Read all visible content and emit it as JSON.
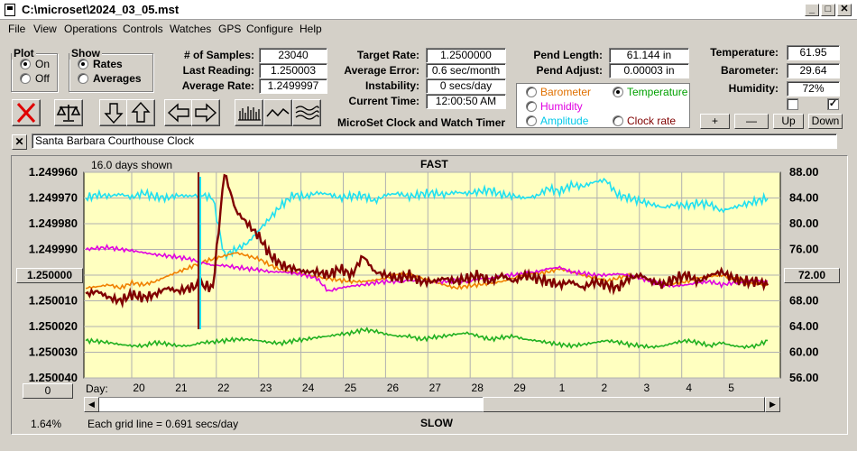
{
  "window": {
    "title": "C:\\microset\\2024_03_05.mst"
  },
  "menu": [
    "File",
    "View",
    "Operations",
    "Controls",
    "Watches",
    "GPS",
    "Configure",
    "Help"
  ],
  "plot": {
    "title": "Plot",
    "on": "On",
    "off": "Off",
    "selected": "On"
  },
  "show": {
    "title": "Show",
    "rates": "Rates",
    "averages": "Averages",
    "selected": "Rates"
  },
  "stats": {
    "samples_label": "# of Samples:",
    "samples": "23040",
    "last_reading_label": "Last Reading:",
    "last_reading": "1.250003",
    "average_rate_label": "Average Rate:",
    "average_rate": "1.2499997",
    "target_rate_label": "Target Rate:",
    "target_rate": "1.2500000",
    "average_error_label": "Average Error:",
    "average_error": "0.6 sec/month",
    "instability_label": "Instability:",
    "instability": "0 secs/day",
    "current_time_label": "Current Time:",
    "current_time": "12:00:50 AM",
    "pend_length_label": "Pend Length:",
    "pend_length": "61.144 in",
    "pend_adjust_label": "Pend Adjust:",
    "pend_adjust": "0.00003 in",
    "temperature_label": "Temperature:",
    "temperature": "61.95",
    "barometer_label": "Barometer:",
    "barometer": "29.64",
    "humidity_label": "Humidity:",
    "humidity": "72%"
  },
  "app_label": "MicroSet Clock and Watch Timer",
  "sensor_options": [
    {
      "label": "Barometer",
      "color": "#e07000",
      "selected": false
    },
    {
      "label": "Temperature",
      "color": "#00a000",
      "selected": true
    },
    {
      "label": "Humidity",
      "color": "#e000e0",
      "selected": false
    },
    {
      "label": "Amplitude",
      "color": "#00c8e8",
      "selected": false
    },
    {
      "label": "Clock rate",
      "color": "#800000",
      "selected": false
    }
  ],
  "scale_buttons": {
    "plus": "+",
    "minus": "—",
    "up": "Up",
    "down": "Down"
  },
  "checkboxes": {
    "left": "",
    "right": "✓"
  },
  "clock_name": "Santa Barbara Courthouse Clock",
  "close_x": "✕",
  "chart_header": {
    "days_shown": "16.0 days shown",
    "fast": "FAST",
    "slow": "SLOW",
    "grid_note": "Each grid line = 0.691 secs/day",
    "percent": "1.64%",
    "day_label": "Day:"
  },
  "chart_buttons": {
    "left_value": "1.250000",
    "right_value": "72.00",
    "bottom_left": "0"
  },
  "chart_data": {
    "type": "line",
    "left_axis": {
      "ticks": [
        "1.249960",
        "1.249970",
        "1.249980",
        "1.249990",
        "1.250000",
        "1.250010",
        "1.250020",
        "1.250030",
        "1.250040"
      ]
    },
    "right_axis": {
      "ticks": [
        "88.00",
        "84.00",
        "80.00",
        "76.00",
        "72.00",
        "68.00",
        "64.00",
        "60.00",
        "56.00"
      ],
      "ylim": [
        56,
        88
      ]
    },
    "x_ticks": [
      "20",
      "21",
      "22",
      "23",
      "24",
      "25",
      "26",
      "27",
      "28",
      "29",
      "1",
      "2",
      "3",
      "4",
      "5"
    ],
    "grid": true,
    "background": "#ffffc0",
    "series": [
      {
        "name": "Amplitude",
        "color": "#20e0f0",
        "values": [
          84.0,
          84.5,
          84.3,
          84.6,
          84.1,
          84.8,
          84.2,
          84.0,
          84.4,
          84.3,
          84.5,
          84.0,
          75,
          76,
          77,
          79,
          81,
          83,
          84.5,
          84.2,
          84.8,
          84.6,
          84.0,
          84.3,
          84.4,
          83.5,
          84.5,
          84.7,
          84.2,
          84.6,
          84.8,
          84.5,
          84.9,
          84.7,
          85.0,
          85.2,
          84.5,
          84.3,
          84.0,
          84.3,
          85.5,
          85.0,
          86.0,
          85.8,
          86.5,
          86.8,
          84.5,
          84.0,
          83.5,
          83.0,
          82.5,
          83.0,
          82.8,
          83.2,
          83.0,
          82.0,
          82.5,
          83.0,
          83.5,
          84.0
        ]
      },
      {
        "name": "Barometer",
        "color": "#f08000",
        "values": [
          70.0,
          70.2,
          70.5,
          70.0,
          70.8,
          70.5,
          71.0,
          71.8,
          72.5,
          73.2,
          74.0,
          74.5,
          75.0,
          75.5,
          75.0,
          74.5,
          73.5,
          72.8,
          72.5,
          72.0,
          71.8,
          71.5,
          71.2,
          71.0,
          71.0,
          71.2,
          71.6,
          72.0,
          72.0,
          71.5,
          71.0,
          70.5,
          70.0,
          70.3,
          70.5,
          70.8,
          71.0,
          71.5,
          72.0,
          72.2,
          72.5,
          73.0,
          72.5,
          72.0,
          71.5,
          71.0,
          71.5,
          72.0,
          71.5,
          71.0,
          70.5,
          70.8,
          71.0,
          71.5,
          71.8,
          72.0,
          71.5,
          71.0,
          70.8,
          70.5
        ]
      },
      {
        "name": "Humidity",
        "color": "#e000e0",
        "values": [
          76.0,
          76.2,
          76.3,
          76.0,
          75.8,
          75.5,
          75.2,
          75.0,
          74.8,
          74.5,
          74.0,
          73.5,
          73.5,
          73.2,
          73.0,
          72.8,
          72.5,
          72.5,
          72.3,
          72.0,
          71.5,
          69.5,
          70.0,
          70.3,
          70.5,
          70.8,
          71.0,
          71.0,
          71.2,
          71.0,
          71.0,
          71.0,
          71.2,
          71.0,
          71.5,
          71.5,
          72.0,
          72.0,
          72.2,
          72.5,
          73.0,
          73.2,
          72.5,
          72.3,
          72.0,
          72.0,
          72.2,
          72.0,
          71.5,
          71.0,
          70.5,
          70.3,
          70.5,
          70.8,
          71.0,
          70.5,
          70.8,
          71.0,
          71.2,
          71.0
        ]
      },
      {
        "name": "Temperature",
        "color": "#20b020",
        "values": [
          61.8,
          61.7,
          61.5,
          61.2,
          61.0,
          61.0,
          61.5,
          61.3,
          61.0,
          61.0,
          61.5,
          61.6,
          61.8,
          62.0,
          62.0,
          61.8,
          61.5,
          61.4,
          61.8,
          62.0,
          62.3,
          62.5,
          62.8,
          63.0,
          63.5,
          63.3,
          62.8,
          62.5,
          62.5,
          62.0,
          62.3,
          62.5,
          62.8,
          63.0,
          62.5,
          62.0,
          62.3,
          62.5,
          62.0,
          61.8,
          61.5,
          61.2,
          61.0,
          61.2,
          61.5,
          61.8,
          61.6,
          61.2,
          61.0,
          60.8,
          61.0,
          61.5,
          61.8,
          61.5,
          61.0,
          61.5,
          61.0,
          60.8,
          61.0,
          61.8
        ]
      },
      {
        "name": "Clock rate",
        "color": "#800000",
        "values": [
          69.0,
          69.5,
          68.5,
          68.0,
          69.0,
          68.5,
          69.0,
          70.0,
          69.5,
          70.0,
          70.5,
          70.0,
          88.0,
          82.0,
          80.0,
          78.0,
          75.0,
          73.5,
          73.0,
          72.5,
          72.5,
          72.0,
          73.0,
          72.0,
          75.0,
          72.5,
          72.0,
          71.5,
          72.0,
          71.0,
          71.0,
          71.5,
          71.0,
          71.5,
          72.0,
          71.0,
          72.0,
          71.0,
          72.0,
          71.5,
          71.0,
          70.5,
          71.0,
          70.0,
          71.0,
          70.5,
          70.0,
          71.5,
          72.0,
          71.0,
          70.5,
          71.5,
          72.0,
          71.0,
          72.0,
          72.5,
          71.5,
          71.0,
          71.0,
          70.5
        ]
      }
    ]
  }
}
